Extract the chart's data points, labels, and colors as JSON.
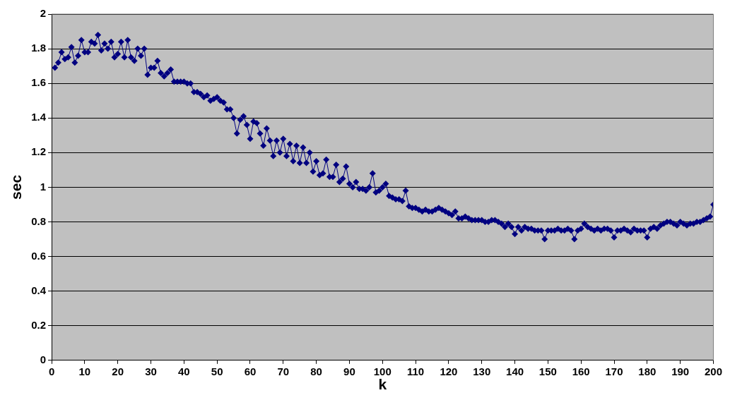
{
  "chart_data": {
    "type": "line",
    "xlabel": "k",
    "ylabel": "sec",
    "marker": "diamond",
    "line_style": "solid",
    "grid": "y",
    "legend": false,
    "xlim": [
      0,
      200
    ],
    "xticks": [
      0,
      10,
      20,
      30,
      40,
      50,
      60,
      70,
      80,
      90,
      100,
      110,
      120,
      130,
      140,
      150,
      160,
      170,
      180,
      190,
      200
    ],
    "ylim": [
      0,
      2
    ],
    "yticks": [
      0,
      0.2,
      0.4,
      0.6,
      0.8,
      1,
      1.2,
      1.4,
      1.6,
      1.8,
      2
    ],
    "series": [
      {
        "color": "#000080",
        "x": [
          1,
          2,
          3,
          4,
          5,
          6,
          7,
          8,
          9,
          10,
          11,
          12,
          13,
          14,
          15,
          16,
          17,
          18,
          19,
          20,
          21,
          22,
          23,
          24,
          25,
          26,
          27,
          28,
          29,
          30,
          31,
          32,
          33,
          34,
          35,
          36,
          37,
          38,
          39,
          40,
          41,
          42,
          43,
          44,
          45,
          46,
          47,
          48,
          49,
          50,
          51,
          52,
          53,
          54,
          55,
          56,
          57,
          58,
          59,
          60,
          61,
          62,
          63,
          64,
          65,
          66,
          67,
          68,
          69,
          70,
          71,
          72,
          73,
          74,
          75,
          76,
          77,
          78,
          79,
          80,
          81,
          82,
          83,
          84,
          85,
          86,
          87,
          88,
          89,
          90,
          91,
          92,
          93,
          94,
          95,
          96,
          97,
          98,
          99,
          100,
          101,
          102,
          103,
          104,
          105,
          106,
          107,
          108,
          109,
          110,
          111,
          112,
          113,
          114,
          115,
          116,
          117,
          118,
          119,
          120,
          121,
          122,
          123,
          124,
          125,
          126,
          127,
          128,
          129,
          130,
          131,
          132,
          133,
          134,
          135,
          136,
          137,
          138,
          139,
          140,
          141,
          142,
          143,
          144,
          145,
          146,
          147,
          148,
          149,
          150,
          151,
          152,
          153,
          154,
          155,
          156,
          157,
          158,
          159,
          160,
          161,
          162,
          163,
          164,
          165,
          166,
          167,
          168,
          169,
          170,
          171,
          172,
          173,
          174,
          175,
          176,
          177,
          178,
          179,
          180,
          181,
          182,
          183,
          184,
          185,
          186,
          187,
          188,
          189,
          190,
          191,
          192,
          193,
          194,
          195,
          196,
          197,
          198,
          199,
          200
        ],
        "values": [
          1.69,
          1.72,
          1.78,
          1.74,
          1.75,
          1.81,
          1.72,
          1.76,
          1.85,
          1.78,
          1.78,
          1.84,
          1.83,
          1.88,
          1.79,
          1.83,
          1.8,
          1.84,
          1.75,
          1.77,
          1.84,
          1.75,
          1.85,
          1.75,
          1.73,
          1.8,
          1.76,
          1.8,
          1.65,
          1.69,
          1.69,
          1.73,
          1.66,
          1.64,
          1.66,
          1.68,
          1.61,
          1.61,
          1.61,
          1.61,
          1.6,
          1.6,
          1.55,
          1.55,
          1.54,
          1.52,
          1.53,
          1.5,
          1.51,
          1.52,
          1.5,
          1.49,
          1.45,
          1.45,
          1.4,
          1.31,
          1.39,
          1.41,
          1.36,
          1.28,
          1.38,
          1.37,
          1.31,
          1.24,
          1.34,
          1.27,
          1.18,
          1.27,
          1.2,
          1.28,
          1.18,
          1.25,
          1.15,
          1.24,
          1.14,
          1.23,
          1.14,
          1.2,
          1.09,
          1.15,
          1.07,
          1.08,
          1.16,
          1.06,
          1.06,
          1.13,
          1.03,
          1.05,
          1.12,
          1.02,
          1,
          1.03,
          0.99,
          0.99,
          0.98,
          1,
          1.08,
          0.97,
          0.98,
          1,
          1.02,
          0.95,
          0.94,
          0.93,
          0.93,
          0.92,
          0.98,
          0.89,
          0.88,
          0.88,
          0.87,
          0.86,
          0.87,
          0.86,
          0.86,
          0.87,
          0.88,
          0.87,
          0.86,
          0.85,
          0.84,
          0.86,
          0.82,
          0.82,
          0.83,
          0.82,
          0.81,
          0.81,
          0.81,
          0.81,
          0.8,
          0.8,
          0.81,
          0.81,
          0.8,
          0.79,
          0.77,
          0.79,
          0.77,
          0.73,
          0.77,
          0.75,
          0.77,
          0.76,
          0.76,
          0.75,
          0.75,
          0.75,
          0.7,
          0.75,
          0.75,
          0.75,
          0.76,
          0.75,
          0.75,
          0.76,
          0.75,
          0.7,
          0.75,
          0.76,
          0.79,
          0.77,
          0.76,
          0.75,
          0.76,
          0.75,
          0.76,
          0.76,
          0.75,
          0.71,
          0.75,
          0.75,
          0.76,
          0.75,
          0.74,
          0.76,
          0.75,
          0.75,
          0.75,
          0.71,
          0.76,
          0.77,
          0.76,
          0.78,
          0.79,
          0.8,
          0.8,
          0.79,
          0.78,
          0.8,
          0.79,
          0.78,
          0.79,
          0.79,
          0.8,
          0.8,
          0.81,
          0.82,
          0.83,
          0.9
        ]
      }
    ]
  }
}
